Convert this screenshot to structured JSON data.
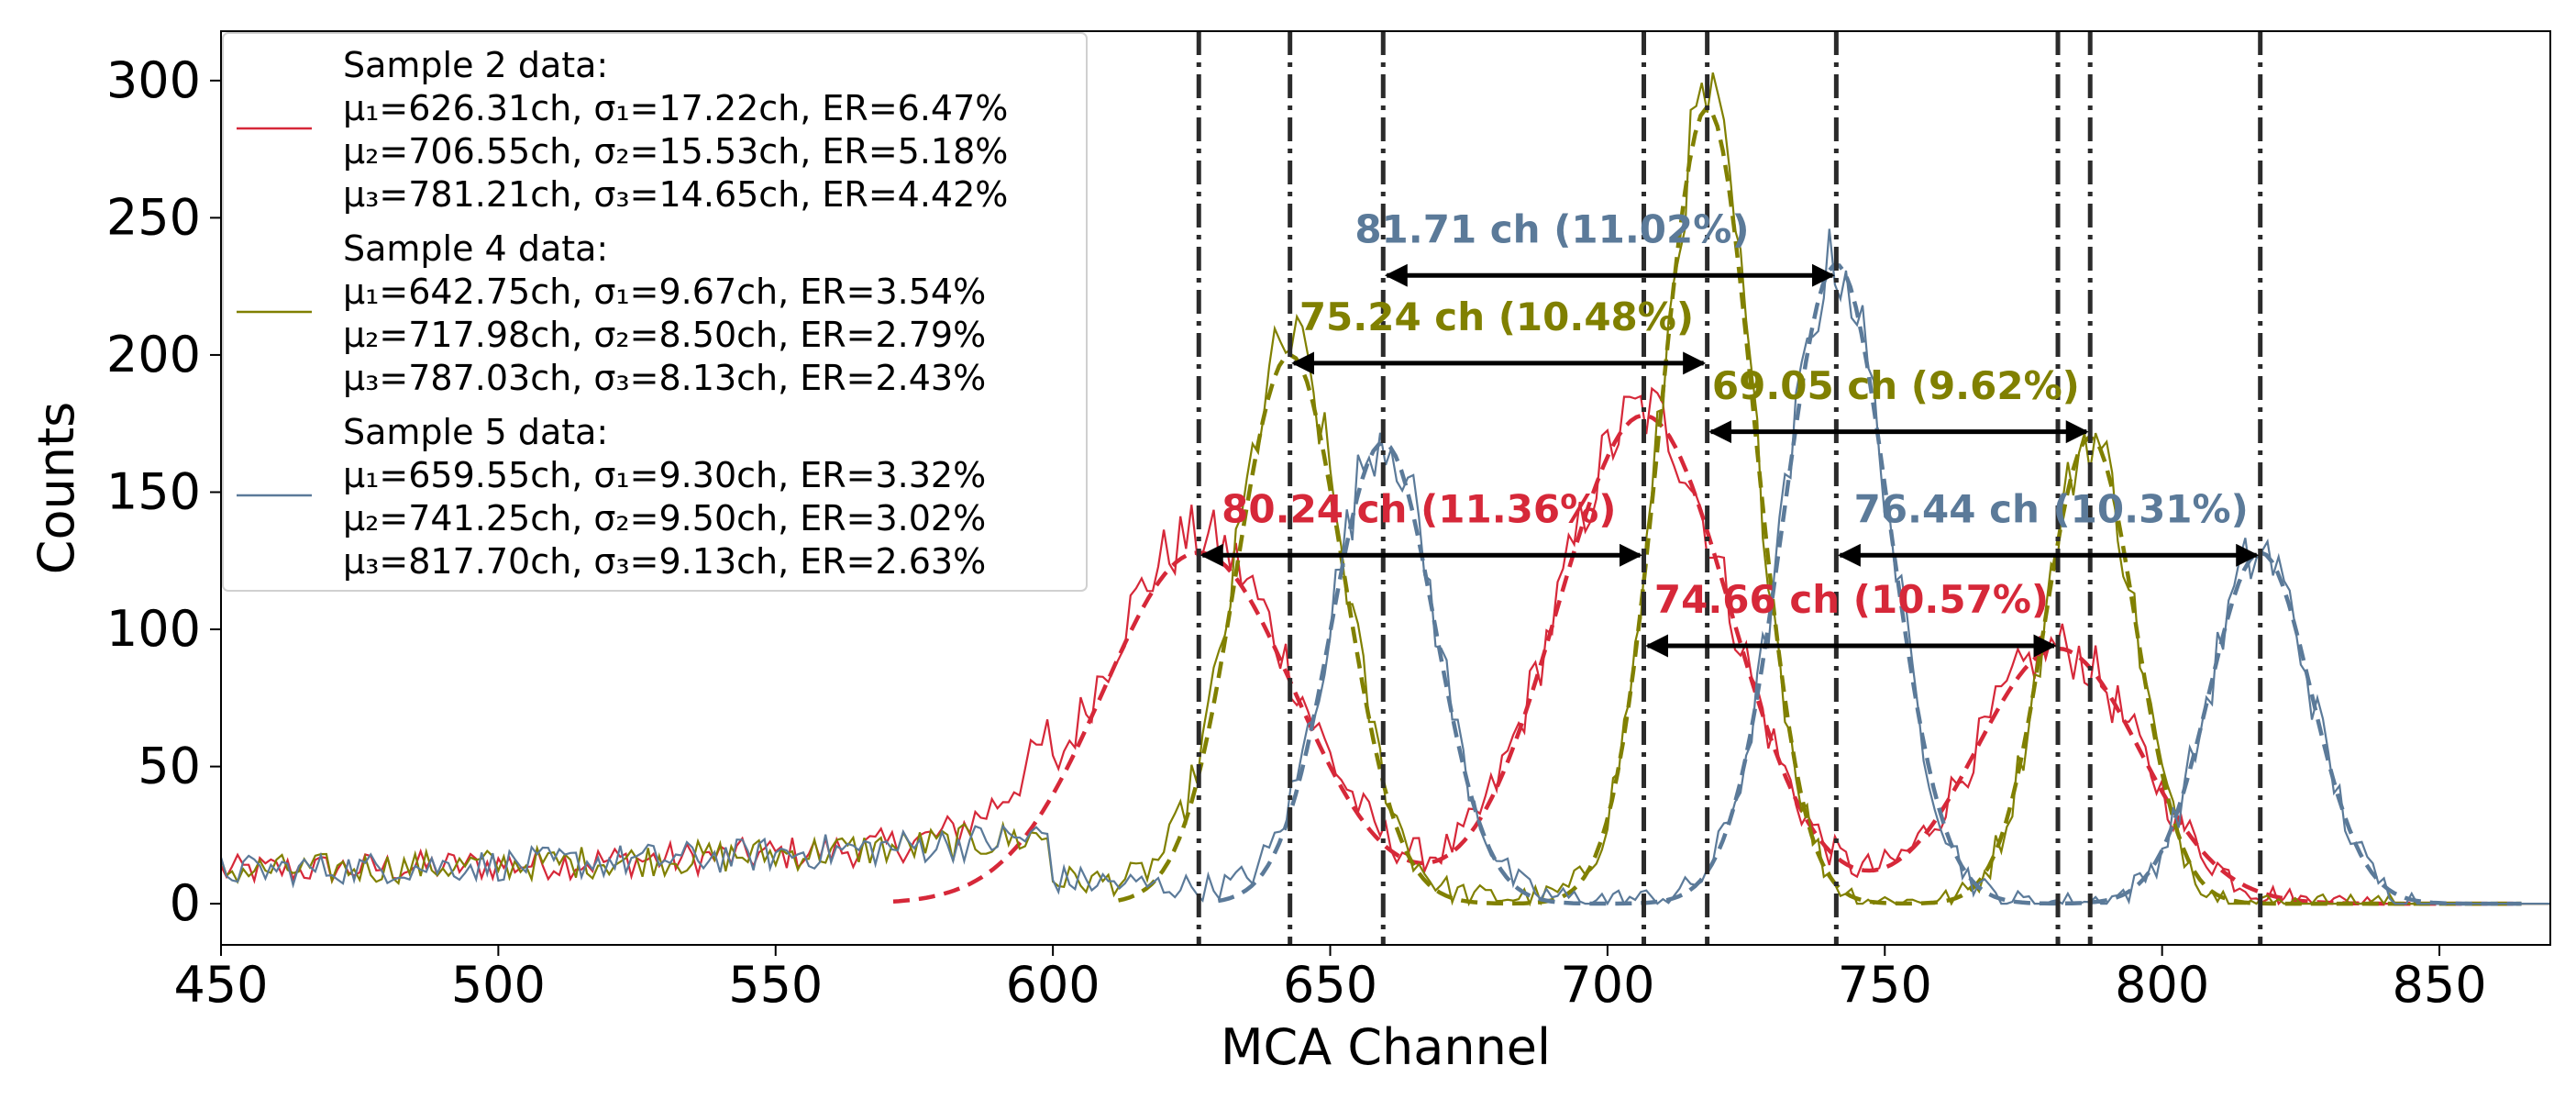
{
  "chart_data": {
    "type": "line",
    "xlabel": "MCA Channel",
    "ylabel": "Counts",
    "xlim": [
      450,
      870
    ],
    "ylim": [
      -15,
      318
    ],
    "xticks": [
      450,
      500,
      550,
      600,
      650,
      700,
      750,
      800,
      850
    ],
    "yticks": [
      0,
      50,
      100,
      150,
      200,
      250,
      300
    ],
    "colors": {
      "sample2": "#d62839",
      "sample4": "#808000",
      "sample5": "#5b7a99",
      "vline": "#2b2b2b",
      "arrow": "#000000"
    },
    "series": [
      {
        "name": "Sample 2 data",
        "key": "sample2",
        "peaks": [
          {
            "mu": 626.31,
            "sigma": 17.22,
            "amp": 128
          },
          {
            "mu": 706.55,
            "sigma": 15.53,
            "amp": 178
          },
          {
            "mu": 781.21,
            "sigma": 14.65,
            "amp": 93
          }
        ],
        "legend": [
          "Sample 2 data:",
          "μ₁=626.31ch, σ₁=17.22ch, ER=6.47%",
          "μ₂=706.55ch, σ₂=15.53ch, ER=5.18%",
          "μ₃=781.21ch, σ₃=14.65ch, ER=4.42%"
        ]
      },
      {
        "name": "Sample 4 data",
        "key": "sample4",
        "peaks": [
          {
            "mu": 642.75,
            "sigma": 9.67,
            "amp": 200
          },
          {
            "mu": 717.98,
            "sigma": 8.5,
            "amp": 290
          },
          {
            "mu": 787.03,
            "sigma": 8.13,
            "amp": 170
          }
        ],
        "legend": [
          "Sample 4 data:",
          "μ₁=642.75ch, σ₁=9.67ch, ER=3.54%",
          "μ₂=717.98ch, σ₂=8.50ch, ER=2.79%",
          "μ₃=787.03ch, σ₃=8.13ch, ER=2.43%"
        ]
      },
      {
        "name": "Sample 5 data",
        "key": "sample5",
        "peaks": [
          {
            "mu": 659.55,
            "sigma": 9.3,
            "amp": 168
          },
          {
            "mu": 741.25,
            "sigma": 9.5,
            "amp": 233
          },
          {
            "mu": 817.7,
            "sigma": 9.13,
            "amp": 128
          }
        ],
        "legend": [
          "Sample 5 data:",
          "μ₁=659.55ch, σ₁=9.30ch, ER=3.32%",
          "μ₂=741.25ch, σ₂=9.50ch, ER=3.02%",
          "μ₃=817.70ch, σ₃=9.13ch, ER=2.63%"
        ]
      }
    ],
    "vlines": [
      626.31,
      642.75,
      659.55,
      706.55,
      717.98,
      741.25,
      781.21,
      787.03,
      817.7
    ],
    "annotations": [
      {
        "text": "81.71 ch (11.02%)",
        "key": "sample5",
        "x1": 659.55,
        "x2": 741.25,
        "y": 229,
        "text_x": 690,
        "text_y": 241
      },
      {
        "text": "75.24 ch (10.48%)",
        "key": "sample4",
        "x1": 642.75,
        "x2": 717.98,
        "y": 197,
        "text_x": 680,
        "text_y": 209
      },
      {
        "text": "69.05 ch (9.62%)",
        "key": "sample4",
        "x1": 717.98,
        "x2": 787.03,
        "y": 172,
        "text_x": 752,
        "text_y": 184
      },
      {
        "text": "80.24 ch (11.36%)",
        "key": "sample2",
        "x1": 626.31,
        "x2": 706.55,
        "y": 127,
        "text_x": 666,
        "text_y": 139
      },
      {
        "text": "76.44 ch (10.31%)",
        "key": "sample5",
        "x1": 741.25,
        "x2": 817.7,
        "y": 127,
        "text_x": 780,
        "text_y": 139
      },
      {
        "text": "74.66 ch (10.57%)",
        "key": "sample2",
        "x1": 706.55,
        "x2": 781.21,
        "y": 94,
        "text_x": 744,
        "text_y": 106
      }
    ]
  }
}
